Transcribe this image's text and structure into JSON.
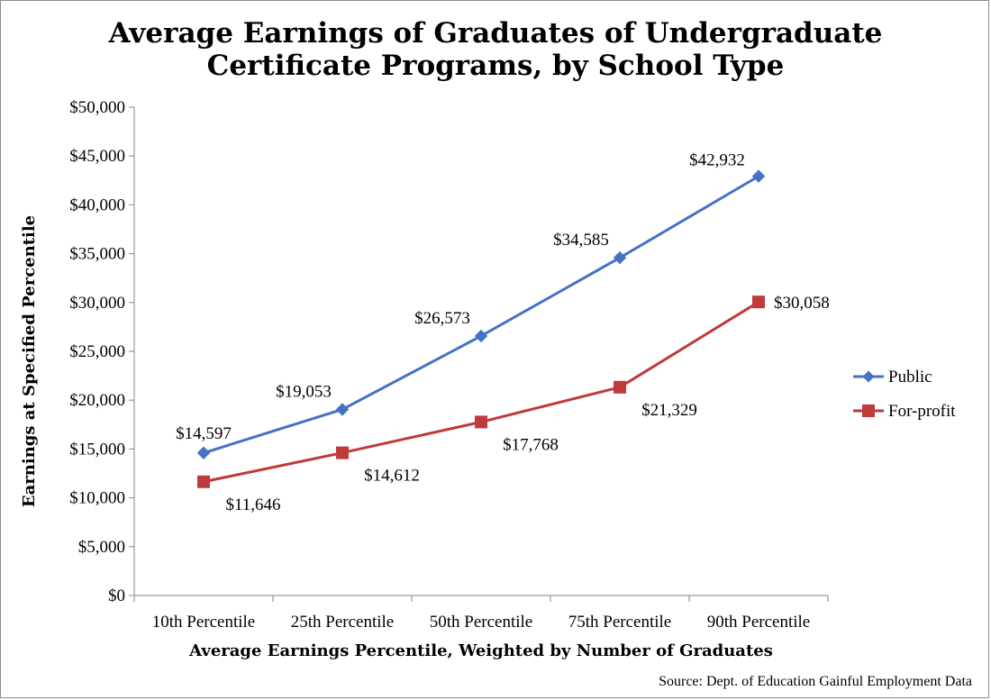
{
  "chart_data": {
    "type": "line",
    "title_lines": [
      "Average Earnings of Graduates of Undergraduate",
      "Certificate Programs, by School Type"
    ],
    "xlabel": "Average Earnings Percentile, Weighted by Number of Graduates",
    "ylabel": "Earnings at Specified Percentile",
    "categories": [
      "10th Percentile",
      "25th Percentile",
      "50th Percentile",
      "75th Percentile",
      "90th Percentile"
    ],
    "ylim": [
      0,
      50000
    ],
    "y_ticks": [
      0,
      5000,
      10000,
      15000,
      20000,
      25000,
      30000,
      35000,
      40000,
      45000,
      50000
    ],
    "y_tick_labels": [
      "$0",
      "$5,000",
      "$10,000",
      "$15,000",
      "$20,000",
      "$25,000",
      "$30,000",
      "$35,000",
      "$40,000",
      "$45,000",
      "$50,000"
    ],
    "grid": false,
    "legend_position": "right",
    "source": "Source: Dept. of Education Gainful Employment Data",
    "series": [
      {
        "name": "Public",
        "color": "#4472c4",
        "marker": "diamond",
        "values": [
          14597,
          19053,
          26573,
          34585,
          42932
        ],
        "labels": [
          "$14,597",
          "$19,053",
          "$26,573",
          "$34,585",
          "$42,932"
        ]
      },
      {
        "name": "For-profit",
        "color": "#c0393b",
        "marker": "square",
        "values": [
          11646,
          14612,
          17768,
          21329,
          30058
        ],
        "labels": [
          "$11,646",
          "$14,612",
          "$17,768",
          "$21,329",
          "$30,058"
        ]
      }
    ]
  }
}
